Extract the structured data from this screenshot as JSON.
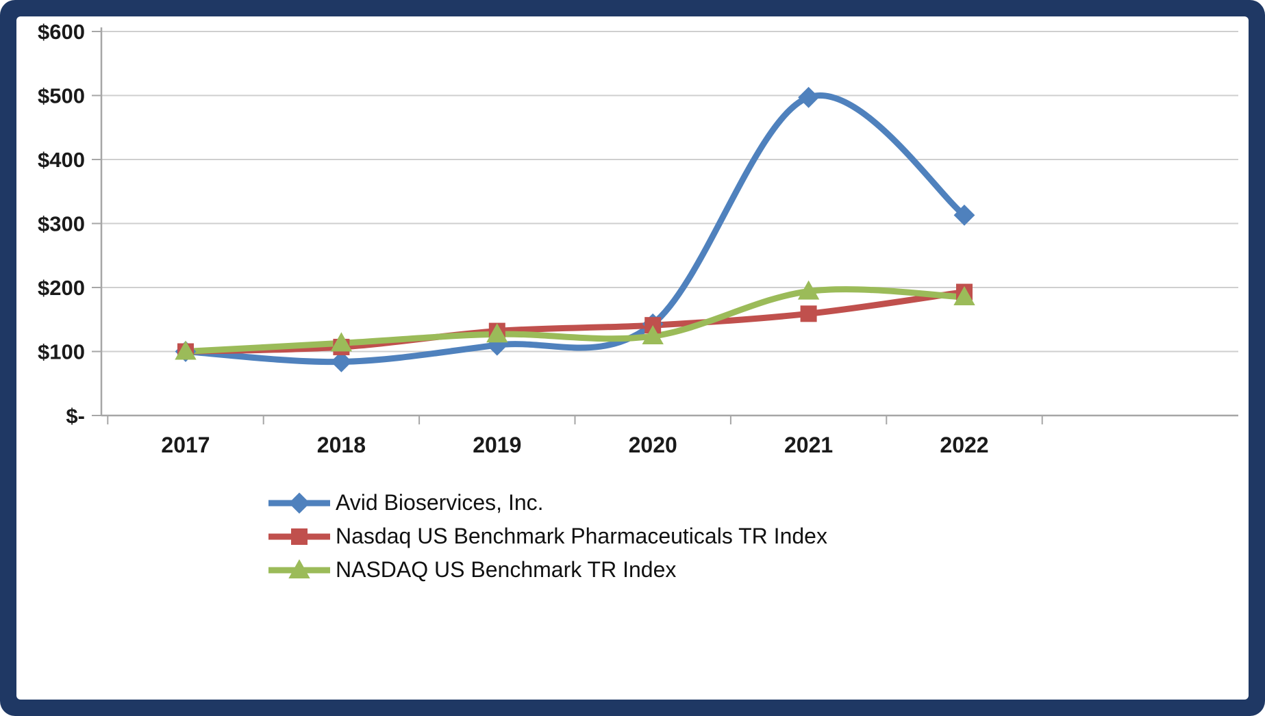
{
  "frame": {
    "border_color": "#1F3864",
    "panel_background": "#FFFFFF"
  },
  "chart_data": {
    "type": "line",
    "line_style": "smooth",
    "x": [
      "2017",
      "2018",
      "2019",
      "2020",
      "2021",
      "2022"
    ],
    "series": [
      {
        "name": "Avid Bioservices, Inc.",
        "color": "#4F81BD",
        "marker": "diamond",
        "values": [
          100,
          84,
          110,
          143,
          497,
          313
        ]
      },
      {
        "name": "Nasdaq US Benchmark Pharmaceuticals TR Index",
        "color": "#C0504D",
        "marker": "square",
        "values": [
          100,
          107,
          132,
          141,
          159,
          193
        ]
      },
      {
        "name": "NASDAQ US Benchmark TR Index",
        "color": "#9BBB59",
        "marker": "triangle",
        "values": [
          100,
          113,
          127,
          124,
          194,
          185
        ]
      }
    ],
    "ylim": [
      0,
      600
    ],
    "yticks": [
      {
        "value": 0,
        "label": "$-"
      },
      {
        "value": 100,
        "label": "$100"
      },
      {
        "value": 200,
        "label": "$200"
      },
      {
        "value": 300,
        "label": "$300"
      },
      {
        "value": 400,
        "label": "$400"
      },
      {
        "value": 500,
        "label": "$500"
      },
      {
        "value": 600,
        "label": "$600"
      }
    ],
    "grid": "horizontal",
    "grid_color": "#CFCFCF",
    "axis_color": "#A6A6A6",
    "text_color": "#1A1A1A",
    "legend_position": "bottom-left"
  }
}
